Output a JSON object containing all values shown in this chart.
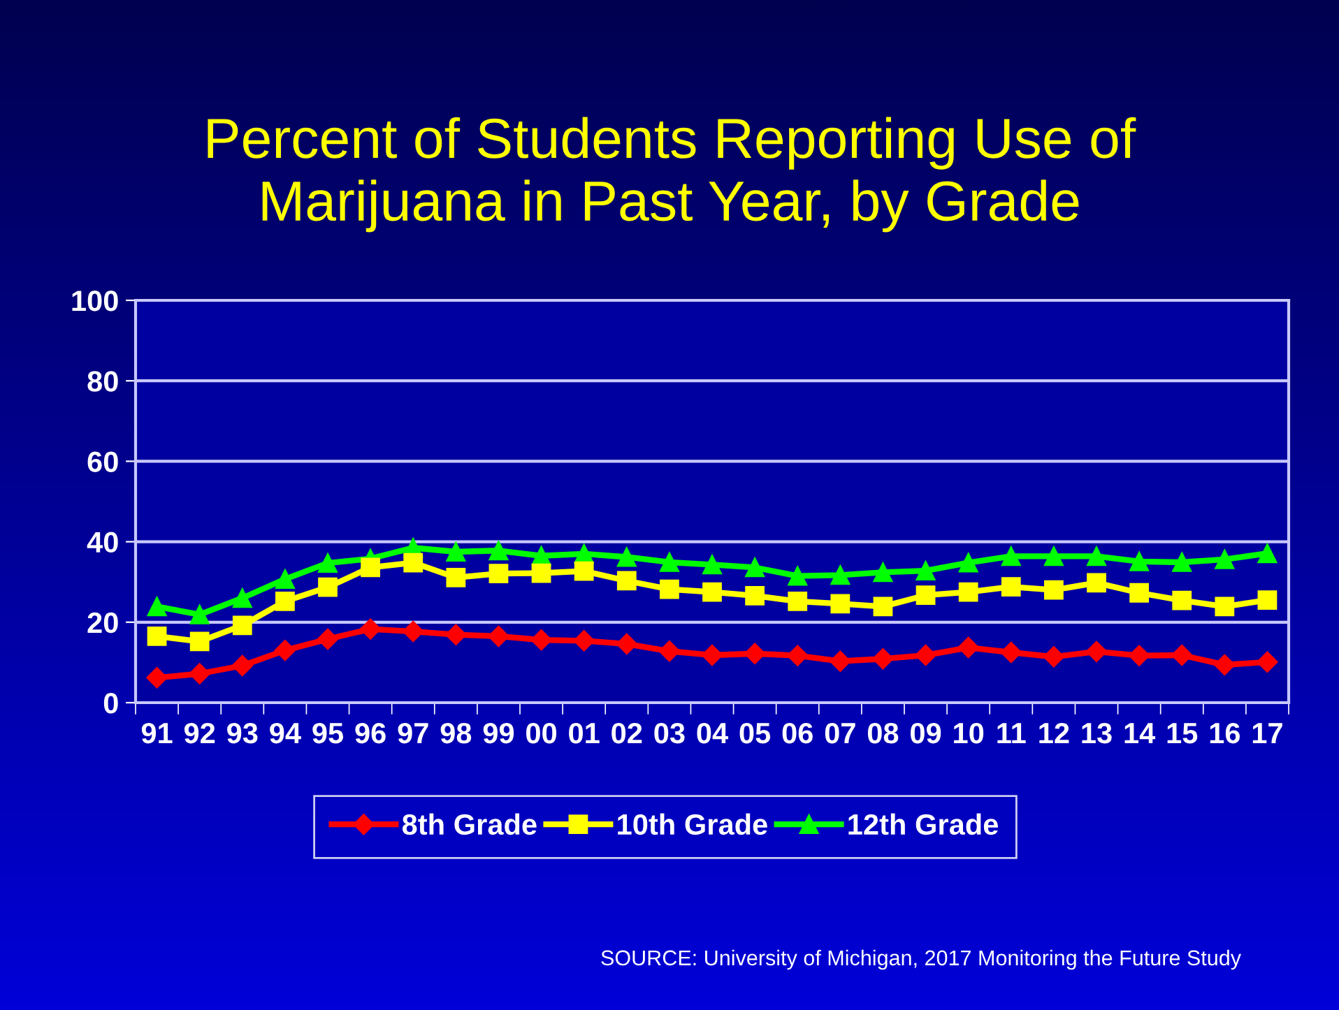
{
  "chart_data": {
    "type": "line",
    "title": "Percent of Students Reporting Use of\nMarijuana in Past Year, by Grade",
    "categories": [
      "91",
      "92",
      "93",
      "94",
      "95",
      "96",
      "97",
      "98",
      "99",
      "00",
      "01",
      "02",
      "03",
      "04",
      "05",
      "06",
      "07",
      "08",
      "09",
      "10",
      "11",
      "12",
      "13",
      "14",
      "15",
      "16",
      "17"
    ],
    "series": [
      {
        "name": "8th Grade",
        "color": "#ff0000",
        "marker": "diamond",
        "values": [
          6.2,
          7.2,
          9.2,
          13.0,
          15.8,
          18.3,
          17.7,
          16.9,
          16.5,
          15.6,
          15.4,
          14.6,
          12.8,
          11.8,
          12.2,
          11.7,
          10.3,
          10.9,
          11.8,
          13.7,
          12.5,
          11.4,
          12.7,
          11.7,
          11.8,
          9.4,
          10.1
        ]
      },
      {
        "name": "10th Grade",
        "color": "#ffff00",
        "marker": "square",
        "values": [
          16.5,
          15.2,
          19.2,
          25.2,
          28.7,
          33.6,
          34.8,
          31.1,
          32.1,
          32.2,
          32.7,
          30.3,
          28.2,
          27.5,
          26.6,
          25.2,
          24.6,
          23.9,
          26.7,
          27.5,
          28.8,
          28.0,
          29.8,
          27.3,
          25.4,
          23.9,
          25.5
        ]
      },
      {
        "name": "12th Grade",
        "color": "#00ff00",
        "marker": "triangle",
        "values": [
          23.9,
          21.9,
          26.0,
          30.7,
          34.7,
          35.8,
          38.5,
          37.5,
          37.8,
          36.5,
          37.0,
          36.2,
          34.9,
          34.3,
          33.6,
          31.5,
          31.7,
          32.4,
          32.8,
          34.8,
          36.4,
          36.4,
          36.4,
          35.1,
          34.9,
          35.6,
          37.1
        ]
      }
    ],
    "ylim": [
      0,
      100
    ],
    "yticks": [
      0,
      20,
      40,
      60,
      80,
      100
    ],
    "grid": "y",
    "legend": "bottom",
    "line_style": "solid",
    "annotations": [
      "SOURCE: University of Michigan, 2017 Monitoring the Future Study"
    ]
  }
}
